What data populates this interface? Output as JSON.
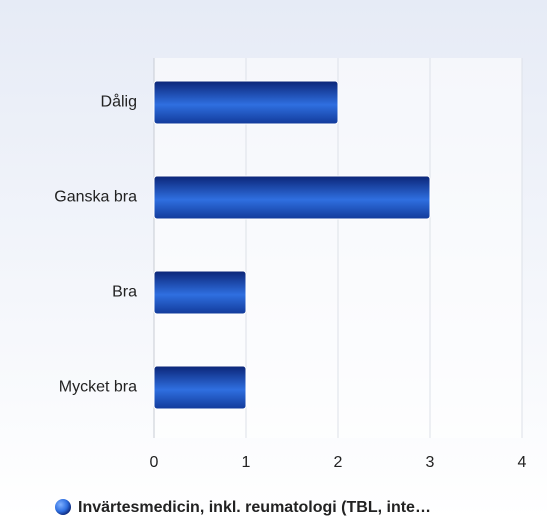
{
  "chart_data": {
    "type": "hbar",
    "categories": [
      "Dålig",
      "Ganska bra",
      "Bra",
      "Mycket bra"
    ],
    "series": [
      {
        "name": "Invärtesmedicin, inkl. reumatologi (TBL, inte…",
        "color": "#2f6fe0",
        "values": [
          2,
          3,
          1,
          1
        ]
      }
    ],
    "xlim": [
      0,
      4
    ],
    "xticks": [
      0,
      1,
      2,
      3,
      4
    ],
    "grid": true
  }
}
